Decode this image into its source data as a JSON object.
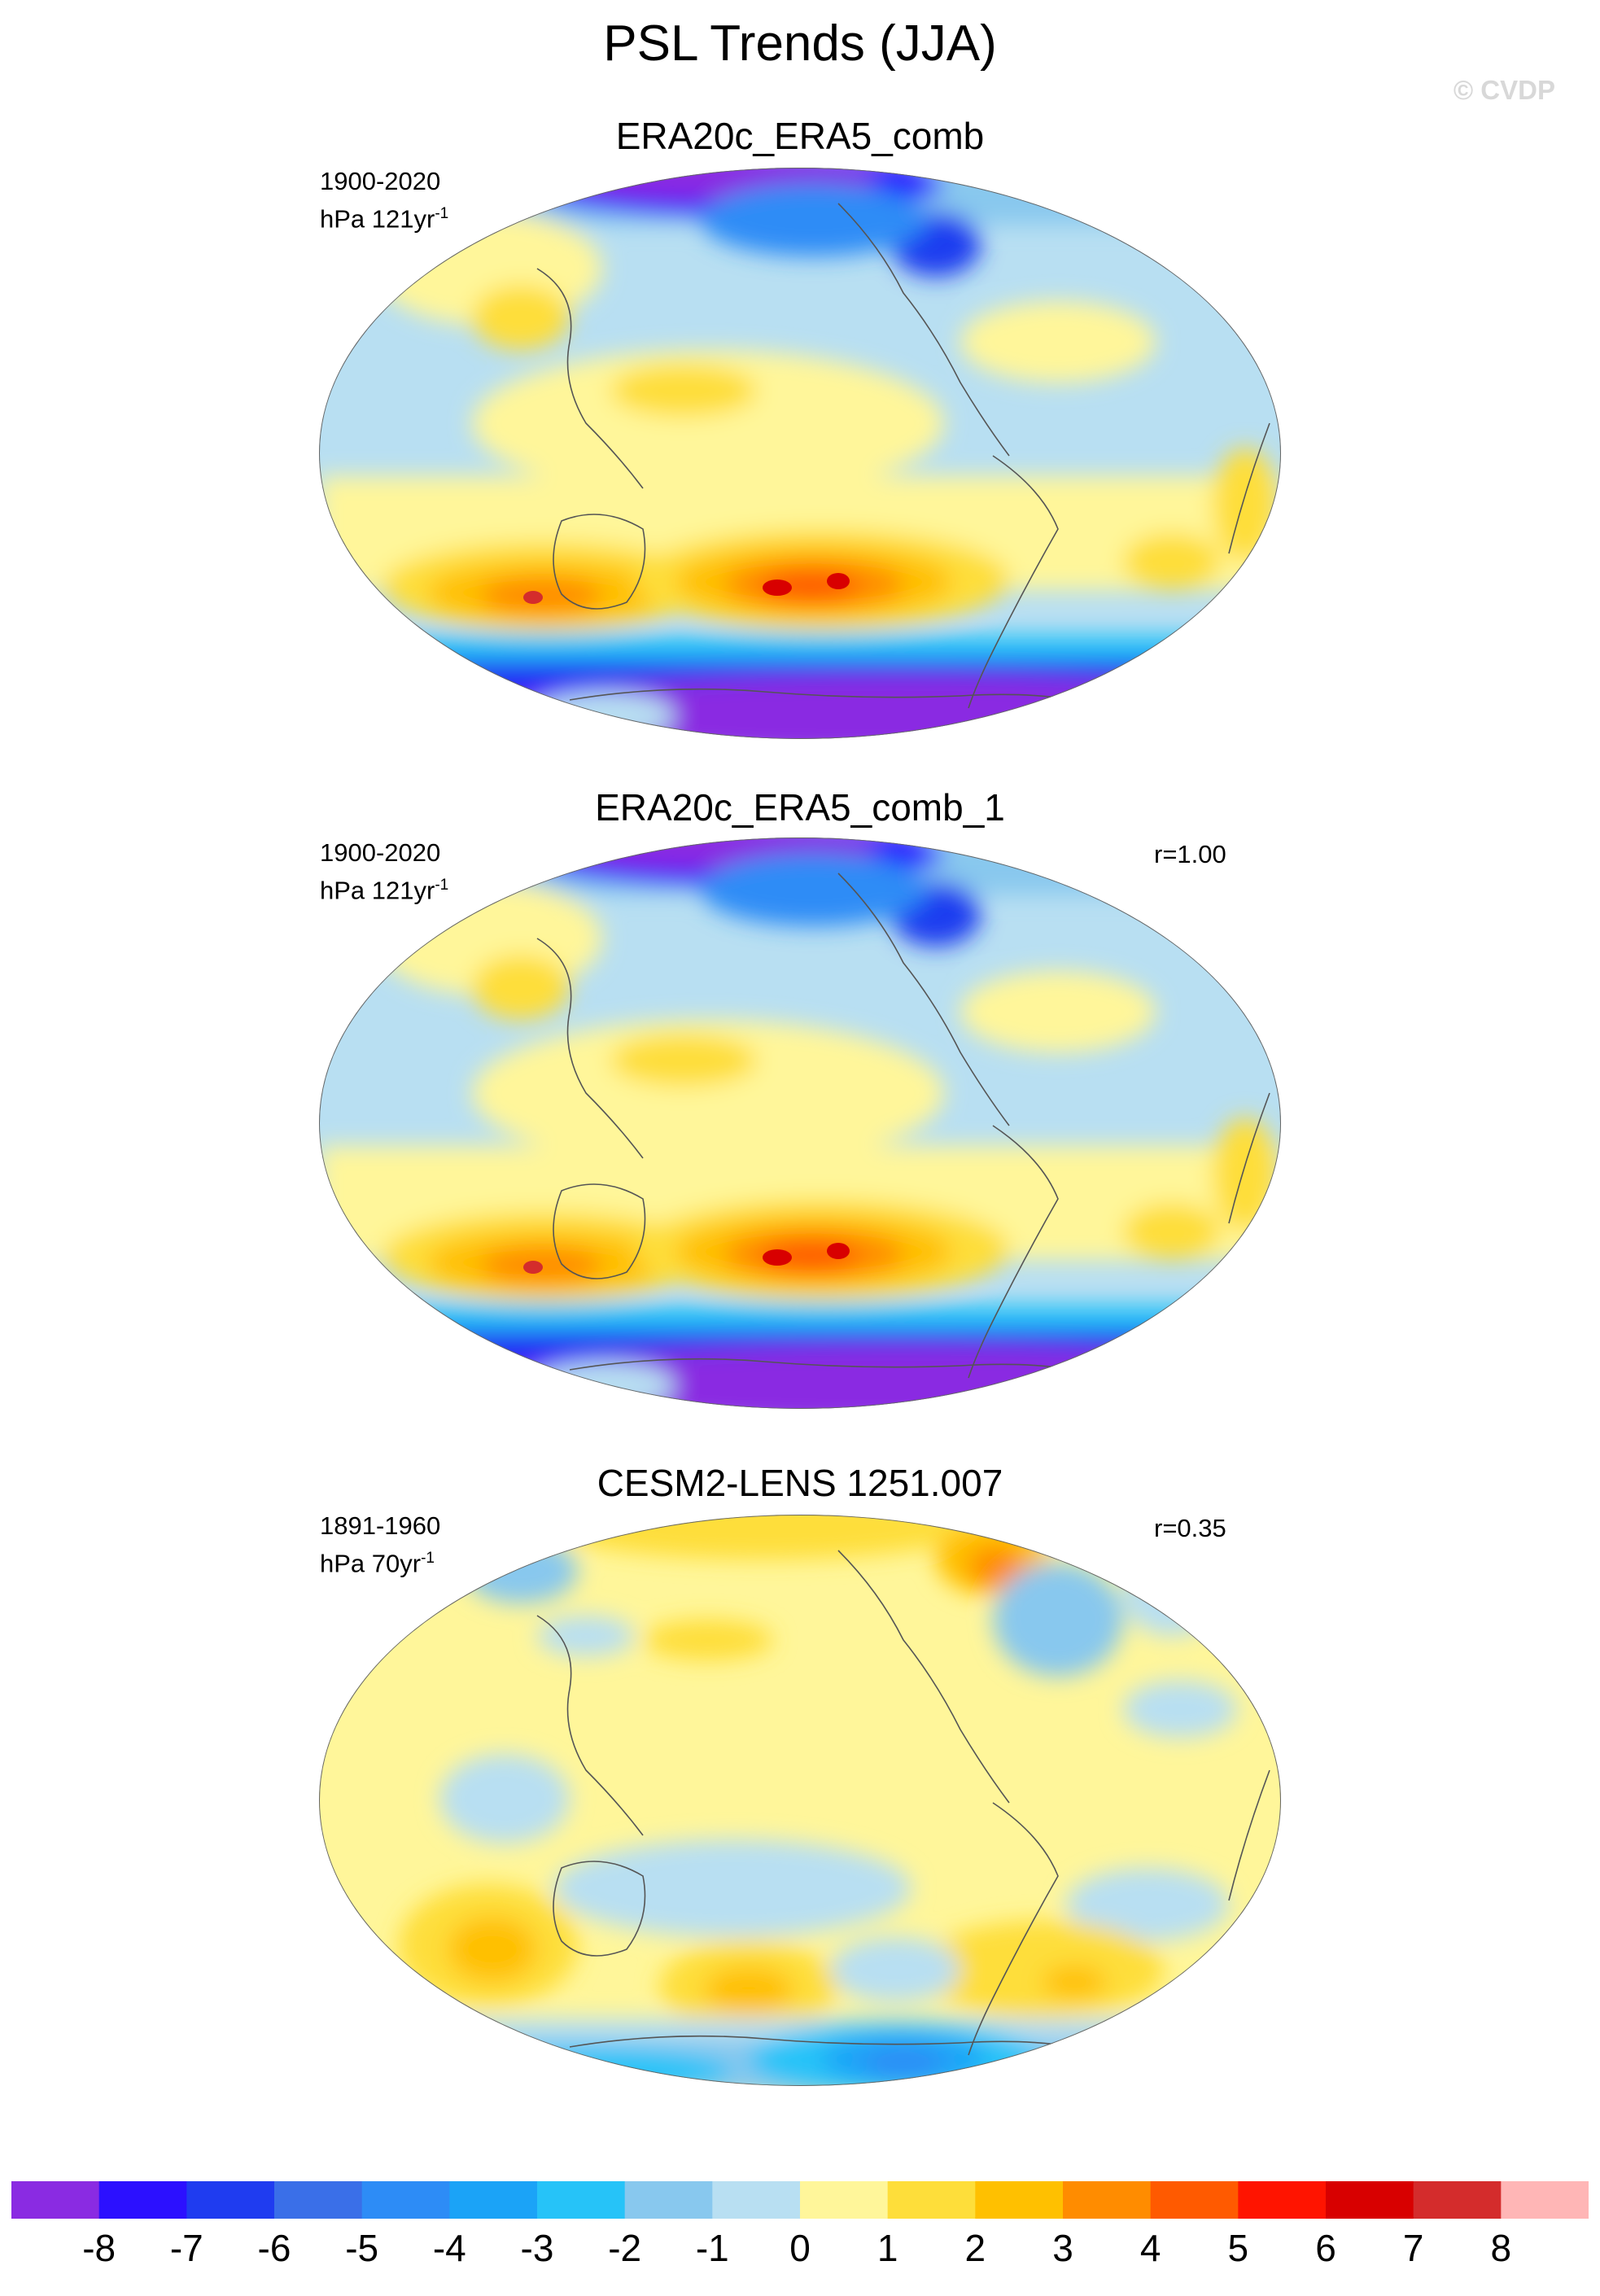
{
  "title": "PSL Trends (JJA)",
  "watermark": "© CVDP",
  "panels": [
    {
      "name": "ERA20c_ERA5_comb",
      "period": "1900-2020",
      "units_prefix": "hPa 121yr",
      "units_exp": "-1",
      "correlation": ""
    },
    {
      "name": "ERA20c_ERA5_comb_1",
      "period": "1900-2020",
      "units_prefix": "hPa 121yr",
      "units_exp": "-1",
      "correlation": "r=1.00"
    },
    {
      "name": "CESM2-LENS 1251.007",
      "period": "1891-1960",
      "units_prefix": "hPa 70yr",
      "units_exp": "-1",
      "correlation": "r=0.35"
    }
  ],
  "colorbar": {
    "colors": [
      "#8a2be2",
      "#2c10ff",
      "#1f3cf0",
      "#3a6fe8",
      "#2d8cf6",
      "#1ba3f7",
      "#26c3f8",
      "#88c8ee",
      "#b8dff2",
      "#fff69a",
      "#fede3a",
      "#ffc000",
      "#ff8c00",
      "#ff5a00",
      "#ff1400",
      "#d80000",
      "#d42c2c",
      "#ffb6b6"
    ],
    "labels": [
      "-8",
      "-7",
      "-6",
      "-5",
      "-4",
      "-3",
      "-2",
      "-1",
      "0",
      "1",
      "2",
      "3",
      "4",
      "5",
      "6",
      "7",
      "8"
    ]
  }
}
